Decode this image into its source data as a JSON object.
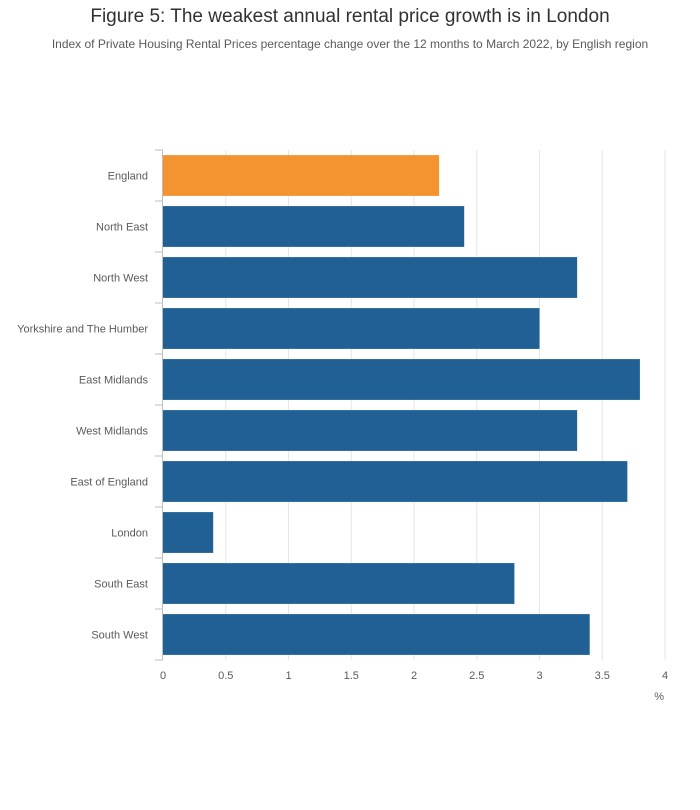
{
  "chart_data": {
    "type": "bar",
    "orientation": "horizontal",
    "title": "Figure 5: The weakest annual rental price growth is in London",
    "subtitle": "Index of Private Housing Rental Prices percentage change over the 12 months to March 2022, by English region",
    "categories": [
      "England",
      "North East",
      "North West",
      "Yorkshire and The Humber",
      "East Midlands",
      "West Midlands",
      "East of England",
      "London",
      "South East",
      "South West"
    ],
    "values": [
      2.2,
      2.4,
      3.3,
      3.0,
      3.8,
      3.3,
      3.7,
      0.4,
      2.8,
      3.4
    ],
    "highlight_category": "England",
    "xlabel": "%",
    "xlim": [
      0,
      4
    ],
    "x_ticks": [
      "0",
      "0.5",
      "1",
      "1.5",
      "2",
      "2.5",
      "3",
      "3.5",
      "4"
    ],
    "grid": true,
    "colors": {
      "default_bar": "#206095",
      "highlight_bar": "#f39431",
      "grid": "#e6e6e6",
      "axis": "#bebebe"
    }
  }
}
